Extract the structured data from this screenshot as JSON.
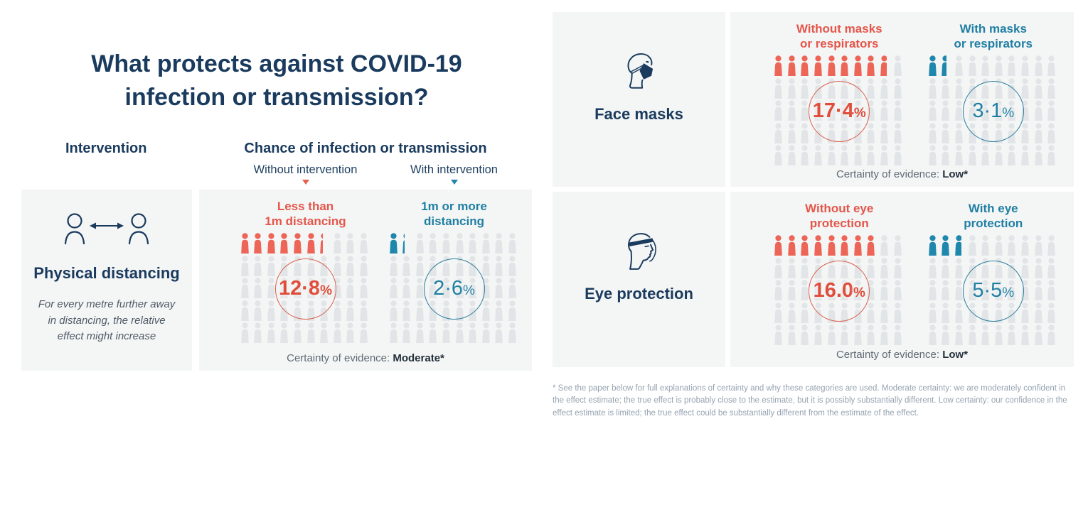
{
  "page": {
    "title_line1": "What protects against COVID-19",
    "title_line2": "infection or transmission?"
  },
  "headers": {
    "intervention": "Intervention",
    "chance": "Chance of infection or transmission",
    "without_intervention": "Without intervention",
    "with_intervention": "With intervention"
  },
  "colors": {
    "navy": "#1a3b5e",
    "red_label": "#e4564a",
    "red_figure": "#ec6556",
    "teal_label": "#1f7fa3",
    "teal_figure": "#1f87ac",
    "gray_figure": "#e2e5e7",
    "panel_bg": "#f4f5f5"
  },
  "chart_data": {
    "type": "pictogram",
    "icon_total": 50,
    "grid_rows": 5,
    "grid_cols": 10,
    "pct_symbol": "%",
    "legend": {
      "without_color": "red",
      "with_color": "teal",
      "without_meaning": "Without intervention",
      "with_meaning": "With intervention"
    },
    "interventions": [
      {
        "name": "Physical distancing",
        "note": "For every metre further away in distancing, the relative effect might increase",
        "without": {
          "label_line1": "Less than",
          "label_line2": "1m distancing",
          "value": 12.8,
          "display": "12·8%",
          "display_num": "12·8"
        },
        "with": {
          "label_line1": "1m or more",
          "label_line2": "distancing",
          "value": 2.6,
          "display": "2·6%",
          "display_num": "2·6"
        },
        "certainty_prefix": "Certainty of evidence:",
        "certainty_value": "Moderate*"
      },
      {
        "name": "Face masks",
        "without": {
          "label_line1": "Without masks",
          "label_line2": "or respirators",
          "value": 17.4,
          "display": "17·4%",
          "display_num": "17·4"
        },
        "with": {
          "label_line1": "With masks",
          "label_line2": "or respirators",
          "value": 3.1,
          "display": "3·1%",
          "display_num": "3·1"
        },
        "certainty_prefix": "Certainty of evidence:",
        "certainty_value": "Low*"
      },
      {
        "name": "Eye protection",
        "without": {
          "label_line1": "Without eye",
          "label_line2": "protection",
          "value": 16.0,
          "display": "16.0%",
          "display_num": "16.0"
        },
        "with": {
          "label_line1": "With eye",
          "label_line2": "protection",
          "value": 5.5,
          "display": "5·5%",
          "display_num": "5·5"
        },
        "certainty_prefix": "Certainty of evidence:",
        "certainty_value": "Low*"
      }
    ]
  },
  "footnote": "* See the paper below for full explanations of certainty and why these categories are used. Moderate certainty: we are moderately confident in the effect estimate; the true effect is probably close to the estimate, but it is possibly substantially different. Low certainty: our confidence in the effect estimate is limited; the true effect could be substantially different from the estimate of the effect."
}
